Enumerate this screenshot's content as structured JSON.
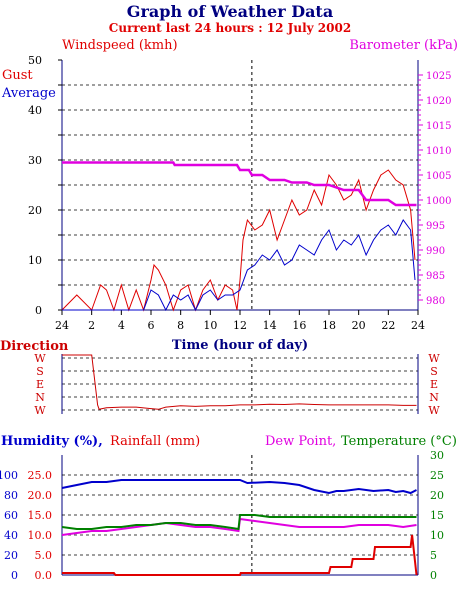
{
  "header": {
    "title": "Graph of Weather Data",
    "subtitle": "Current last 24 hours : 12 July 2002"
  },
  "colors": {
    "gust": "#e00000",
    "average": "#0000cc",
    "barometer": "#e000e0",
    "humidity": "#0000cc",
    "rainfall": "#e00000",
    "dewpoint": "#e000e0",
    "temperature": "#008000",
    "direction": "#cc0000",
    "navy": "#000080"
  },
  "wind": {
    "ylabel_left": "Windspeed (kmh)",
    "ylabel_right": "Barometer (kPa)",
    "legend_gust": "Gust",
    "legend_average": "Average",
    "xlabel": "Time (hour of day)"
  },
  "direction": {
    "label": "Direction"
  },
  "bottom": {
    "humidity_label": "Humidity (%),",
    "rainfall_label": "Rainfall (mm)",
    "dewpoint_label": "Dew Point,",
    "temperature_label": "Temperature (°C)"
  },
  "chart_data": [
    {
      "type": "line",
      "title": "Graph of Weather Data",
      "x_ticks": [
        "24",
        "2",
        "4",
        "6",
        "8",
        "10",
        "12",
        "14",
        "16",
        "18",
        "20",
        "22",
        "24"
      ],
      "xlabel": "Time (hour of day)",
      "ylabel": "Windspeed (kmh)",
      "ylim": [
        0,
        50
      ],
      "y_ticks": [
        0,
        10,
        20,
        30,
        40,
        50
      ],
      "y2label": "Barometer (kPa)",
      "y2lim": [
        978,
        1028
      ],
      "y2_ticks": [
        980,
        985,
        990,
        995,
        1000,
        1005,
        1010,
        1015,
        1020,
        1025
      ],
      "series": [
        {
          "name": "Gust",
          "x": [
            0,
            1,
            2,
            2.6,
            3,
            3.5,
            4,
            4.5,
            5,
            5.5,
            6,
            6.2,
            6.5,
            7,
            7.5,
            8,
            8.5,
            9,
            9.5,
            10,
            10.5,
            11,
            11.5,
            11.8,
            12,
            12.2,
            12.5,
            13,
            13.5,
            14,
            14.5,
            15,
            15.5,
            16,
            16.5,
            17,
            17.5,
            18,
            18.5,
            19,
            19.5,
            20,
            20.5,
            21,
            21.5,
            22,
            22.5,
            23,
            23.5,
            23.8
          ],
          "values": [
            0,
            3,
            0,
            5,
            4,
            0,
            5,
            0,
            4,
            0,
            6,
            9,
            8,
            5,
            0,
            4,
            5,
            0,
            4,
            6,
            2,
            5,
            4,
            0,
            6,
            14,
            18,
            16,
            17,
            20,
            14,
            18,
            22,
            19,
            20,
            24,
            21,
            27,
            25,
            22,
            23,
            26,
            20,
            24,
            27,
            28,
            26,
            25,
            20,
            10
          ]
        },
        {
          "name": "Average",
          "x": [
            0,
            5.5,
            6,
            6.5,
            7,
            7.5,
            8,
            8.5,
            9,
            9.5,
            10,
            10.5,
            11,
            11.5,
            12,
            12.5,
            13,
            13.5,
            14,
            14.5,
            15,
            15.5,
            16,
            16.5,
            17,
            17.5,
            18,
            18.5,
            19,
            19.5,
            20,
            20.5,
            21,
            21.5,
            22,
            22.5,
            23,
            23.5,
            23.8
          ],
          "values": [
            0,
            0,
            4,
            3,
            0,
            3,
            2,
            3,
            0,
            3,
            4,
            2,
            3,
            3,
            4,
            8,
            9,
            11,
            10,
            12,
            9,
            10,
            13,
            12,
            11,
            14,
            16,
            12,
            14,
            13,
            15,
            11,
            14,
            16,
            17,
            15,
            18,
            16,
            6
          ]
        },
        {
          "name": "Barometer",
          "axis": "right",
          "x": [
            0,
            7.5,
            7.6,
            11.8,
            12,
            12.6,
            12.8,
            13.5,
            14,
            15,
            15.5,
            16.5,
            17,
            18,
            19,
            20,
            20.5,
            22,
            22.5,
            23.5,
            23.9
          ],
          "values": [
            1007.5,
            1007.5,
            1007,
            1007,
            1006,
            1006,
            1005,
            1005,
            1004,
            1004,
            1003.5,
            1003.5,
            1003,
            1003,
            1002,
            1002,
            1000,
            1000,
            999,
            999,
            999
          ]
        }
      ]
    },
    {
      "type": "line",
      "ylabel": "Direction",
      "y_ticks": [
        "W",
        "S",
        "E",
        "N",
        "W"
      ],
      "xlim": [
        0,
        24
      ],
      "series": [
        {
          "name": "Direction",
          "x": [
            0,
            2,
            2.4,
            2.5,
            3,
            4,
            5,
            6,
            6.5,
            7,
            8,
            9,
            10,
            11,
            12,
            13,
            14,
            15,
            16,
            17,
            18,
            19,
            20,
            21,
            22,
            23,
            23.9
          ],
          "values": [
            360,
            360,
            305,
            275,
            285,
            290,
            290,
            280,
            275,
            290,
            300,
            295,
            300,
            300,
            305,
            305,
            310,
            308,
            312,
            308,
            305,
            305,
            305,
            305,
            305,
            302,
            302
          ]
        }
      ]
    },
    {
      "type": "line",
      "ylabel": "Humidity (%), Rainfall (mm)",
      "y_ticks_humidity": [
        0,
        20,
        40,
        60,
        80,
        100
      ],
      "y_ticks_rainfall": [
        0.0,
        5.0,
        10.0,
        15.0,
        20.0,
        25.0
      ],
      "y2label": "Dew Point, Temperature (°C)",
      "y2_ticks": [
        0,
        5,
        10,
        15,
        20,
        25,
        30
      ],
      "series": [
        {
          "name": "Humidity (%)",
          "x": [
            0,
            1,
            2,
            3,
            4,
            6,
            12,
            12.5,
            14,
            15,
            16,
            17,
            18,
            18.5,
            19,
            20,
            21,
            22,
            22.5,
            23,
            23.5,
            23.9
          ],
          "values": [
            87,
            90,
            93,
            93,
            95,
            95,
            95,
            92,
            93,
            92,
            90,
            85,
            82,
            84,
            84,
            86,
            84,
            85,
            83,
            84,
            82,
            85
          ]
        },
        {
          "name": "Rainfall (mm)",
          "x": [
            0,
            3.5,
            3.6,
            12,
            12.05,
            18,
            18.1,
            19.5,
            19.6,
            21,
            21.1,
            23.5,
            23.6,
            23.9
          ],
          "values": [
            0.5,
            0.5,
            0,
            0,
            0.5,
            0.5,
            2,
            2,
            4,
            4,
            7,
            7,
            10,
            0
          ]
        },
        {
          "name": "Dew Point",
          "axis": "right",
          "x": [
            0,
            1,
            2,
            3,
            4,
            5,
            6,
            7,
            8,
            9,
            10,
            11,
            11.9,
            12,
            13,
            14,
            15,
            16,
            17,
            18,
            19,
            20,
            21,
            22,
            23,
            23.9
          ],
          "values": [
            10,
            10.5,
            11,
            11,
            11.5,
            12,
            12.5,
            13,
            12.5,
            12,
            12,
            11.5,
            11,
            14,
            13.5,
            13,
            12.5,
            12,
            12,
            12,
            12,
            12.5,
            12.5,
            12.5,
            12,
            12.5
          ]
        },
        {
          "name": "Temperature (°C)",
          "axis": "right",
          "x": [
            0,
            1,
            2,
            3,
            4,
            5,
            6,
            7,
            8,
            9,
            10,
            11,
            11.9,
            12,
            13,
            14,
            15,
            16,
            17,
            18,
            19,
            20,
            21,
            22,
            23,
            23.9
          ],
          "values": [
            12,
            11.5,
            11.5,
            12,
            12,
            12.5,
            12.5,
            13,
            13,
            12.5,
            12.5,
            12,
            11.5,
            15,
            15,
            14.5,
            14.5,
            14.5,
            14.5,
            14.5,
            14.5,
            14.5,
            14.5,
            14.5,
            14.5,
            14.5
          ]
        }
      ]
    }
  ]
}
